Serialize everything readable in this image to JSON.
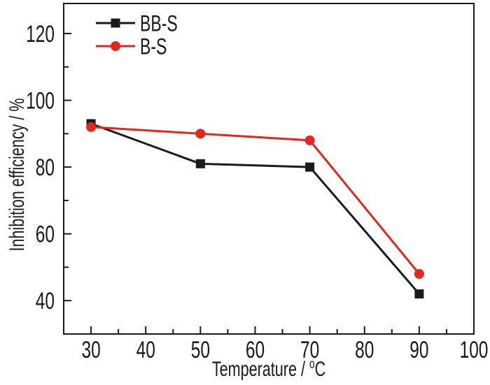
{
  "figure": {
    "background": "#ffffff",
    "frame_color": "#1a1a1a"
  },
  "chart_data": {
    "type": "line",
    "title": "",
    "xlabel": "Temperature / °C",
    "xlabel_parts": {
      "prefix": "Temperature / ",
      "superscript": "o",
      "suffix": "C"
    },
    "ylabel": "Inhibition efficiency / %",
    "x": [
      30,
      50,
      70,
      90
    ],
    "series": [
      {
        "name": "BB-S",
        "color": "#1a1a1a",
        "marker": "square",
        "values": [
          93,
          81,
          80,
          42
        ]
      },
      {
        "name": "B-S",
        "color": "#e2271e",
        "marker": "circle",
        "values": [
          92,
          90,
          88,
          48
        ]
      }
    ],
    "xlim": [
      25,
      100
    ],
    "ylim": [
      30,
      129
    ],
    "x_major_ticks": [
      30,
      40,
      50,
      60,
      70,
      80,
      90,
      100
    ],
    "x_minor_ticks": [
      35,
      45,
      55,
      65,
      75,
      85,
      95
    ],
    "y_major_ticks": [
      40,
      60,
      80,
      100,
      120
    ],
    "y_minor_ticks": [
      50,
      70,
      90,
      110
    ],
    "legend": {
      "position": "top-left",
      "entries": [
        "BB-S",
        "B-S"
      ]
    },
    "grid": false,
    "tick_direction": "in"
  }
}
